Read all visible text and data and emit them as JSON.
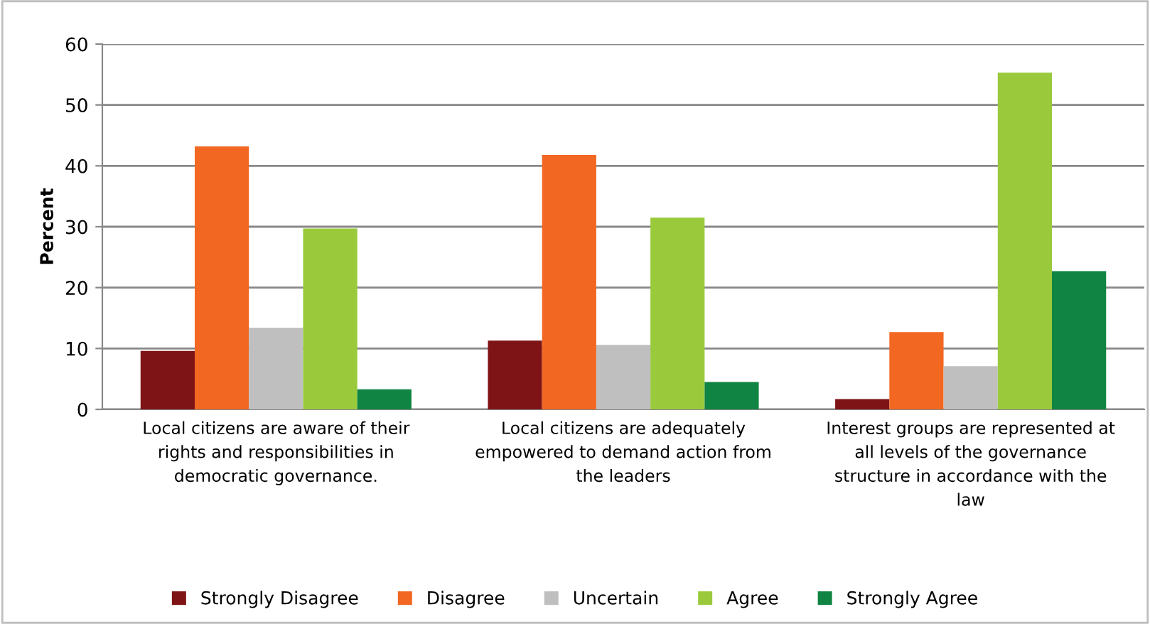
{
  "chart_data": {
    "type": "bar",
    "ylabel": "Percent",
    "categories": [
      "Local citizens are aware of their\nrights and responsibilities in\ndemocratic governance.",
      "Local citizens are adequately\nempowered to demand action from\nthe leaders",
      "Interest groups are represented at\nall levels of the governance\nstructure in accordance with the\nlaw"
    ],
    "series": [
      {
        "name": "Strongly Disagree",
        "color": "#7f1416",
        "values": [
          9.6,
          11.3,
          1.7
        ]
      },
      {
        "name": "Disagree",
        "color": "#f26722",
        "values": [
          43.2,
          41.8,
          12.7
        ]
      },
      {
        "name": "Uncertain",
        "color": "#bfbfbf",
        "values": [
          13.4,
          10.6,
          7.1
        ]
      },
      {
        "name": "Agree",
        "color": "#9aca3c",
        "values": [
          29.7,
          31.5,
          55.3
        ]
      },
      {
        "name": "Strongly Agree",
        "color": "#108442",
        "values": [
          3.3,
          4.5,
          22.7
        ]
      }
    ],
    "ylim": [
      0,
      60
    ],
    "yticks": [
      0,
      10,
      20,
      30,
      40,
      50,
      60
    ],
    "grid": "y",
    "legend": "bottom"
  }
}
